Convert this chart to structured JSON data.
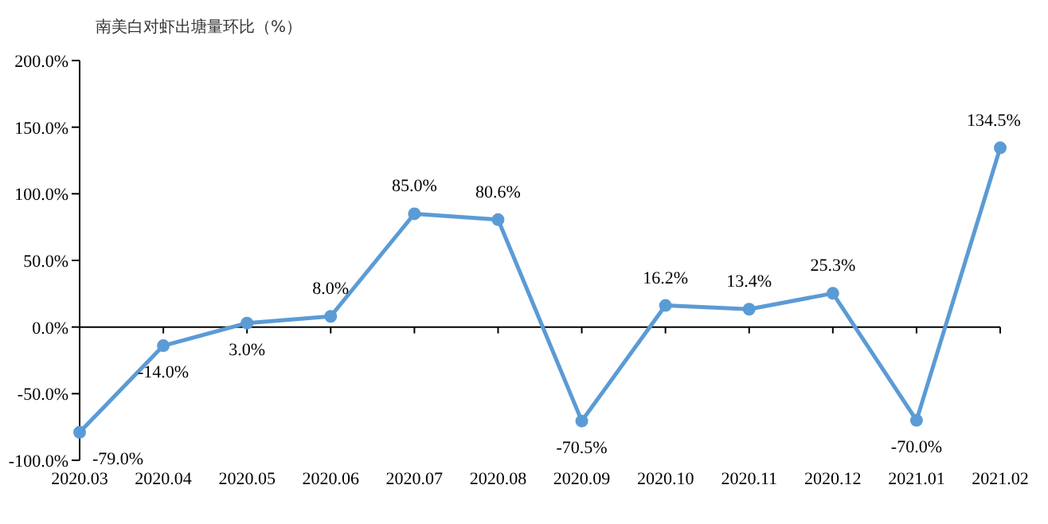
{
  "chart_data": {
    "type": "line",
    "title": "南美白对虾出塘量环比（%）",
    "categories": [
      "2020.03",
      "2020.04",
      "2020.05",
      "2020.06",
      "2020.07",
      "2020.08",
      "2020.09",
      "2020.10",
      "2020.11",
      "2020.12",
      "2021.01",
      "2021.02"
    ],
    "values": [
      -79.0,
      -14.0,
      3.0,
      8.0,
      85.0,
      80.6,
      -70.5,
      16.2,
      13.4,
      25.3,
      -70.0,
      134.5
    ],
    "value_labels": [
      "-79.0%",
      "-14.0%",
      "3.0%",
      "8.0%",
      "85.0%",
      "80.6%",
      "-70.5%",
      "16.2%",
      "13.4%",
      "25.3%",
      "-70.0%",
      "134.5%"
    ],
    "color": "#5b9bd5",
    "marker": "circle",
    "line_style": "solid",
    "ylim": [
      -100,
      200
    ],
    "yticks": [
      {
        "value": -100,
        "label": "-100.0%"
      },
      {
        "value": -50,
        "label": "-50.0%"
      },
      {
        "value": 0,
        "label": "0.0%"
      },
      {
        "value": 50,
        "label": "50.0%"
      },
      {
        "value": 100,
        "label": "100.0%"
      },
      {
        "value": 150,
        "label": "150.0%"
      },
      {
        "value": 200,
        "label": "200.0%"
      }
    ]
  }
}
